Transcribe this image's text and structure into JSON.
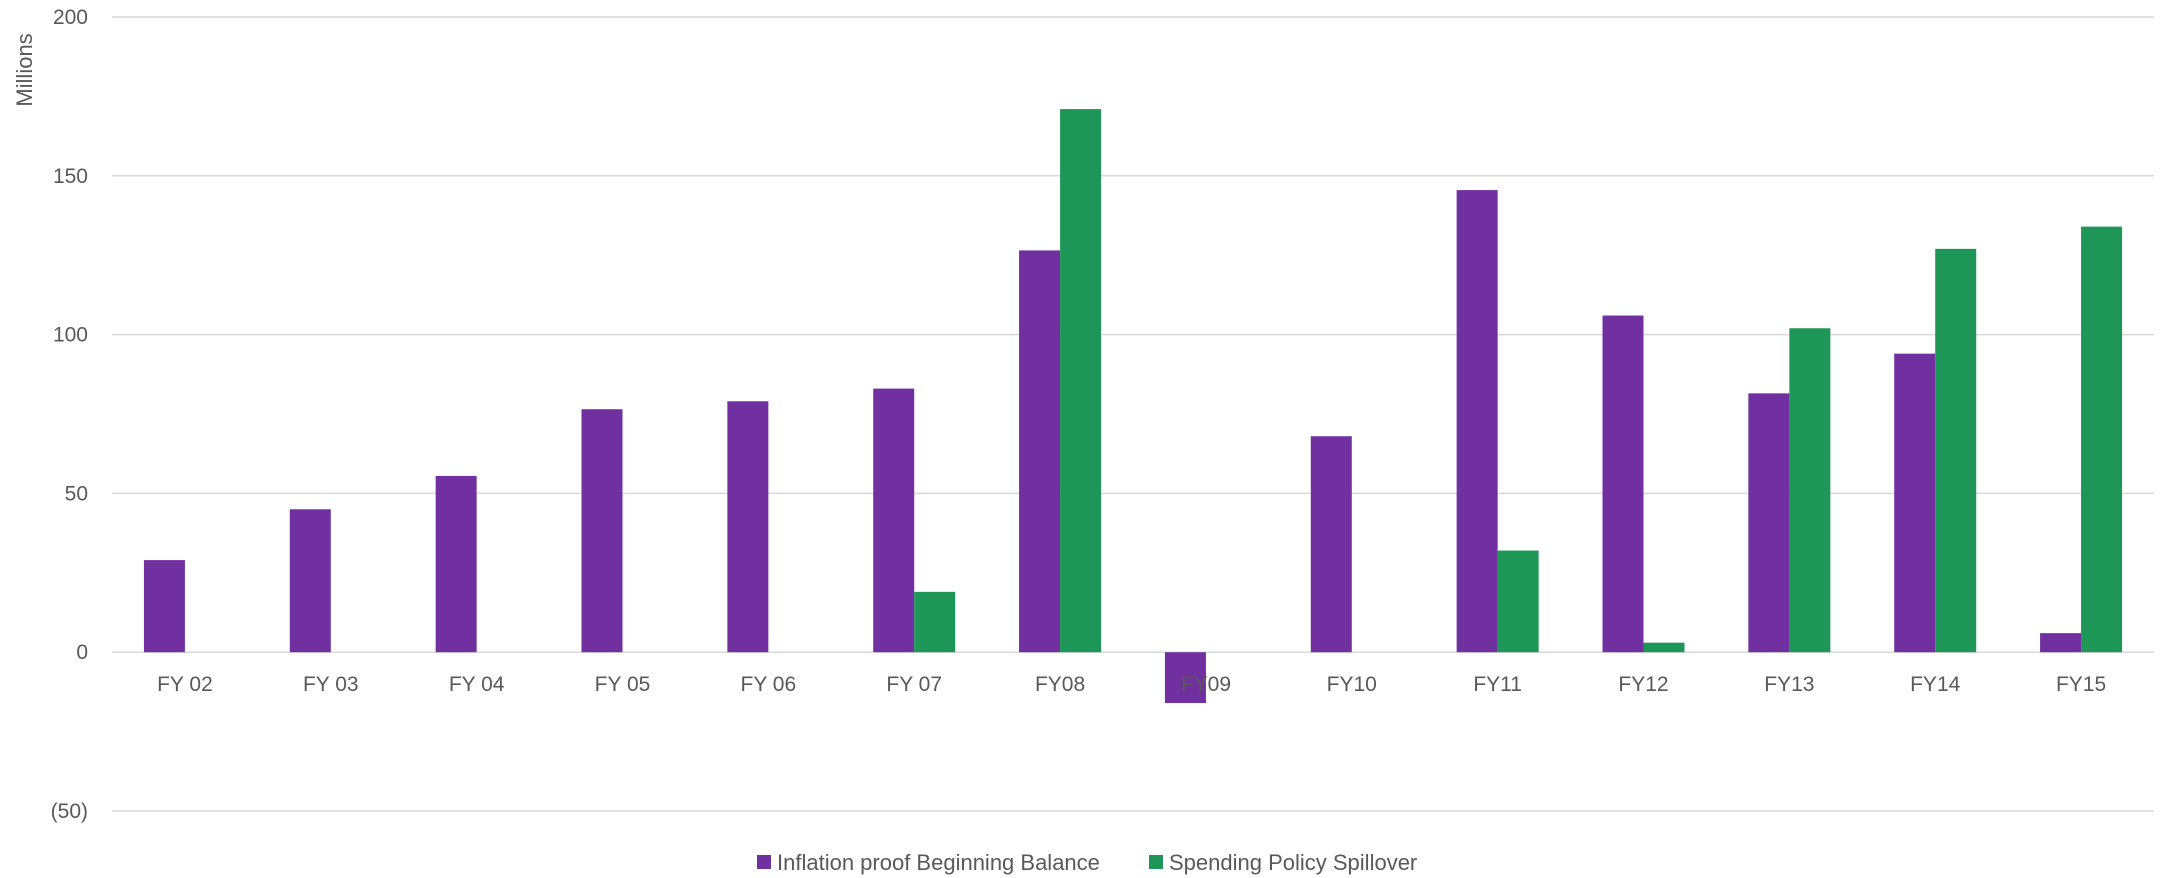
{
  "chart_data": {
    "type": "bar",
    "title": "",
    "xlabel": "",
    "ylabel": "Millions",
    "ylim": [
      -50,
      200
    ],
    "yticks": [
      {
        "value": 200,
        "label": "200"
      },
      {
        "value": 150,
        "label": "150"
      },
      {
        "value": 100,
        "label": "100"
      },
      {
        "value": 50,
        "label": "50"
      },
      {
        "value": 0,
        "label": "0"
      },
      {
        "value": -50,
        "label": "(50)"
      }
    ],
    "negative_label_color": "#ff0000",
    "grid": true,
    "legend_position": "bottom",
    "categories": [
      "FY 02",
      "FY 03",
      "FY 04",
      "FY 05",
      "FY 06",
      "FY 07",
      "FY08",
      "FY09",
      "FY10",
      "FY11",
      "FY12",
      "FY13",
      "FY14",
      "FY15"
    ],
    "series": [
      {
        "name": "Inflation proof Beginning Balance",
        "color": "#7030a0",
        "values": [
          29,
          45,
          55.5,
          76.5,
          79,
          83,
          126.5,
          -16,
          68,
          145.5,
          106,
          81.5,
          94,
          6
        ]
      },
      {
        "name": "Spending Policy Spillover",
        "color": "#1e9657",
        "values": [
          0,
          0,
          0,
          0,
          0,
          19,
          171,
          0,
          0,
          32,
          3,
          102,
          127,
          134
        ]
      }
    ]
  }
}
